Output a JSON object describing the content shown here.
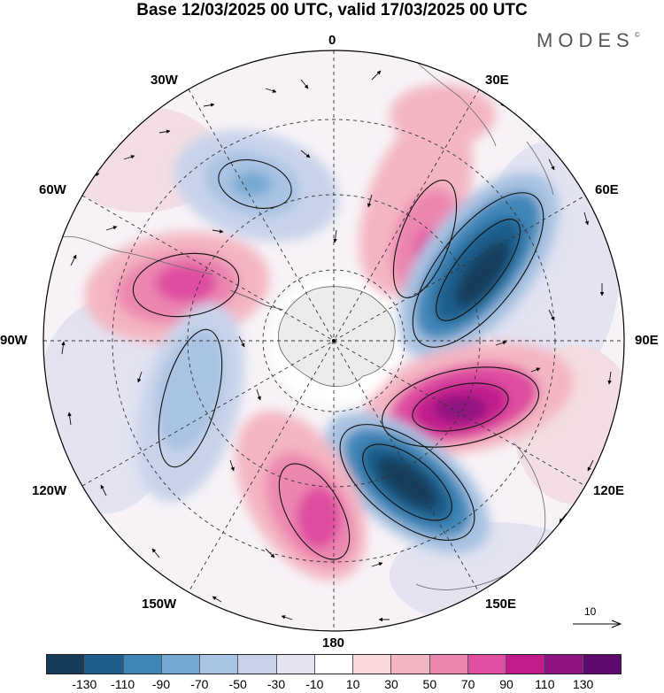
{
  "title": "Base 12/03/2025 00 UTC, valid 17/03/2025 00 UTC",
  "brand": "MODES",
  "brand_mark": "©",
  "meridians": {
    "m0": "0",
    "m30e": "30E",
    "m60e": "60E",
    "m90e": "90E",
    "m120e": "120E",
    "m150e": "150E",
    "m180": "180",
    "m150w": "150W",
    "m120w": "120W",
    "m90w": "90W",
    "m60w": "60W",
    "m30w": "30W"
  },
  "reference_vector": "10",
  "colorbar": {
    "colors": [
      "#173c5c",
      "#1e5f8c",
      "#3f86b8",
      "#76a9d2",
      "#a9c3e2",
      "#c8d3ea",
      "#e3e3f1",
      "#ffffff",
      "#f9d9dc",
      "#f4b6c2",
      "#ec87b0",
      "#df4ea0",
      "#c11b8c",
      "#8e1281",
      "#5e0b70"
    ],
    "ticks": [
      "-130",
      "-110",
      "-90",
      "-70",
      "-50",
      "-30",
      "-10",
      "10",
      "30",
      "50",
      "70",
      "90",
      "110",
      "130"
    ]
  },
  "map_colors": {
    "ocean_white": "#ffffff",
    "land_gray": "#ececec",
    "neg_strong": "#173c5c",
    "pos_strong": "#5e0b70"
  }
}
